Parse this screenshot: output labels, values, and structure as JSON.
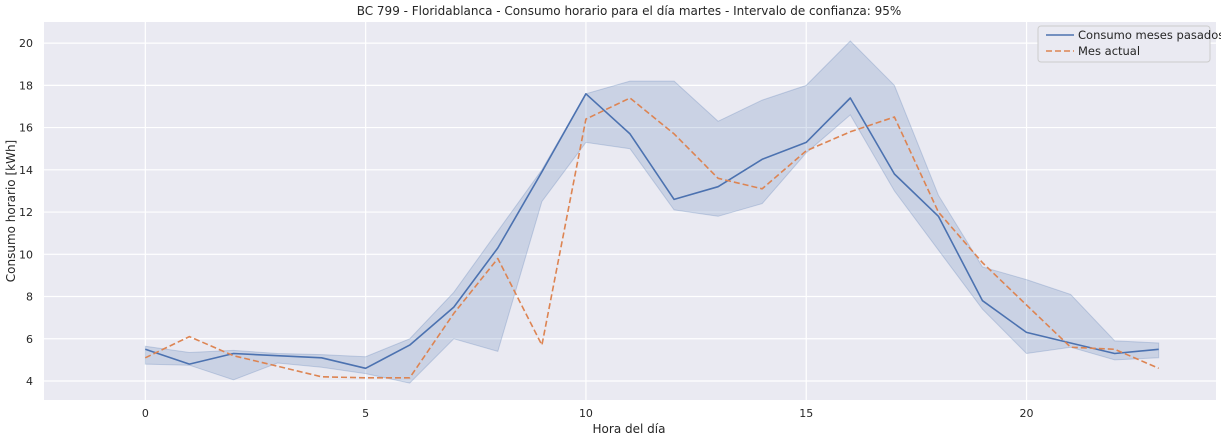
{
  "chart_data": {
    "type": "line",
    "title": "BC 799 - Floridablanca - Consumo horario para el día martes - Intervalo de confianza: 95%",
    "xlabel": "Hora del día",
    "ylabel": "Consumo horario [kWh]",
    "xlim": [
      -2.3,
      24.3
    ],
    "ylim": [
      3.1,
      21.0
    ],
    "xticks": [
      0,
      5,
      10,
      15,
      20
    ],
    "yticks": [
      4,
      6,
      8,
      10,
      12,
      14,
      16,
      18,
      20
    ],
    "grid": true,
    "legend_position": "top-right",
    "x": [
      0,
      1,
      2,
      3,
      4,
      5,
      6,
      7,
      8,
      9,
      10,
      11,
      12,
      13,
      14,
      15,
      16,
      17,
      18,
      19,
      20,
      21,
      22,
      23
    ],
    "series": [
      {
        "name": "Consumo meses pasados",
        "color": "#4c72b0",
        "style": "solid",
        "values": [
          5.5,
          4.8,
          5.3,
          5.2,
          5.1,
          4.6,
          5.7,
          7.5,
          10.3,
          13.9,
          17.6,
          15.7,
          12.6,
          13.2,
          14.5,
          15.3,
          17.4,
          13.8,
          11.8,
          7.8,
          6.3,
          5.8,
          5.3,
          5.5
        ],
        "ci_lower": [
          4.8,
          4.75,
          4.05,
          4.85,
          4.65,
          4.35,
          3.9,
          6.0,
          5.4,
          12.5,
          15.3,
          15.0,
          12.1,
          11.8,
          12.4,
          14.8,
          16.6,
          13.0,
          10.2,
          7.4,
          5.3,
          5.6,
          5.0,
          5.1
        ],
        "ci_upper": [
          5.65,
          5.35,
          5.45,
          5.3,
          5.25,
          5.15,
          6.0,
          8.2,
          11.1,
          14.0,
          17.6,
          18.2,
          18.2,
          16.3,
          17.3,
          18.0,
          20.1,
          18.0,
          12.8,
          9.4,
          8.8,
          8.1,
          5.9,
          5.8
        ]
      },
      {
        "name": "Mes actual",
        "color": "#dd8452",
        "style": "dashed",
        "values": [
          5.1,
          6.1,
          5.2,
          4.7,
          4.2,
          4.15,
          4.15,
          7.2,
          9.8,
          5.7,
          16.4,
          17.4,
          15.7,
          13.6,
          13.1,
          14.9,
          15.8,
          16.5,
          12.0,
          9.6,
          7.6,
          5.6,
          5.5,
          4.6
        ]
      }
    ],
    "ci_color": "#4c72b0"
  }
}
